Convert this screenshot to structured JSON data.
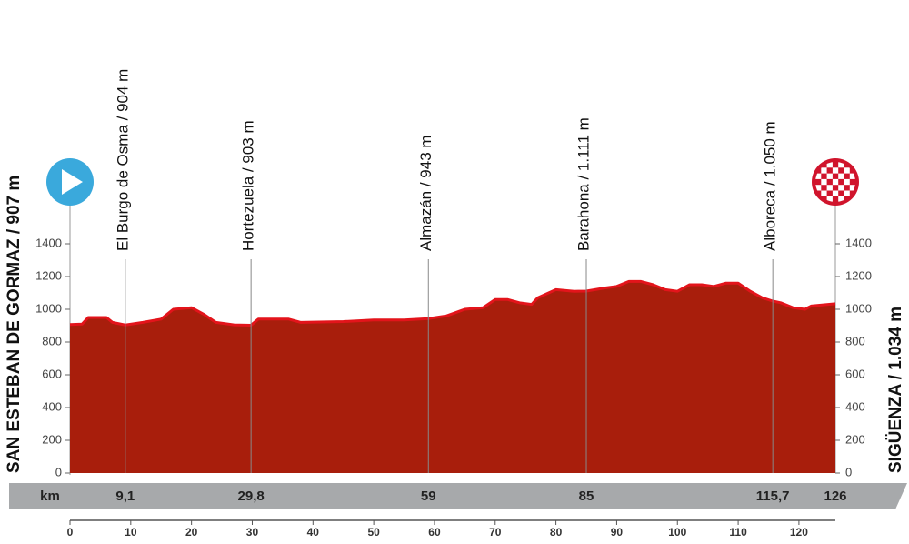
{
  "chart_data": {
    "type": "area",
    "fill_color": "#a81e0c",
    "edge_color": "#e3141b",
    "x": [
      0,
      2,
      3,
      6,
      7,
      9.1,
      12,
      15,
      17,
      20,
      22,
      24,
      27,
      29.8,
      31,
      36,
      38,
      45,
      50,
      55,
      59,
      62,
      65,
      68,
      70,
      72,
      74,
      76,
      77,
      80,
      83,
      85,
      88,
      90,
      92,
      94,
      96,
      98,
      100,
      102,
      104,
      106,
      108,
      110,
      112,
      114,
      115.7,
      117,
      119,
      121,
      122,
      126
    ],
    "values": [
      907,
      910,
      950,
      950,
      920,
      904,
      920,
      940,
      1000,
      1010,
      970,
      920,
      905,
      903,
      940,
      940,
      920,
      925,
      935,
      935,
      943,
      960,
      1000,
      1010,
      1060,
      1060,
      1040,
      1030,
      1070,
      1120,
      1110,
      1111,
      1130,
      1140,
      1170,
      1170,
      1150,
      1120,
      1110,
      1150,
      1150,
      1140,
      1160,
      1160,
      1110,
      1070,
      1050,
      1040,
      1010,
      1000,
      1020,
      1034
    ],
    "xlim": [
      0,
      126
    ],
    "xticks": [
      0,
      10,
      20,
      30,
      40,
      50,
      60,
      70,
      80,
      90,
      100,
      110,
      120
    ],
    "ylim": [
      0,
      1400
    ],
    "yticks": [
      0,
      200,
      400,
      600,
      800,
      1000,
      1200,
      1400
    ],
    "distance_unit": "km",
    "start": {
      "label": "SAN ESTEBAN DE GORMAZ / 907 m",
      "km": 0
    },
    "finish": {
      "label": "SIGÜENZA / 1.034 m",
      "km": 126
    },
    "waypoints": [
      {
        "name": "El Burgo de Osma / 904 m",
        "km": {
          "value": 9.1,
          "label": "9,1"
        }
      },
      {
        "name": "Hortezuela / 903 m",
        "km": {
          "value": 29.8,
          "label": "29,8"
        }
      },
      {
        "name": "Almazán / 943 m",
        "km": 59
      },
      {
        "name": "Barahona / 1.111 m",
        "km": 85
      },
      {
        "name": "Alboreca / 1.050 m",
        "km": {
          "value": 115.7,
          "label": "115,7"
        }
      }
    ]
  }
}
